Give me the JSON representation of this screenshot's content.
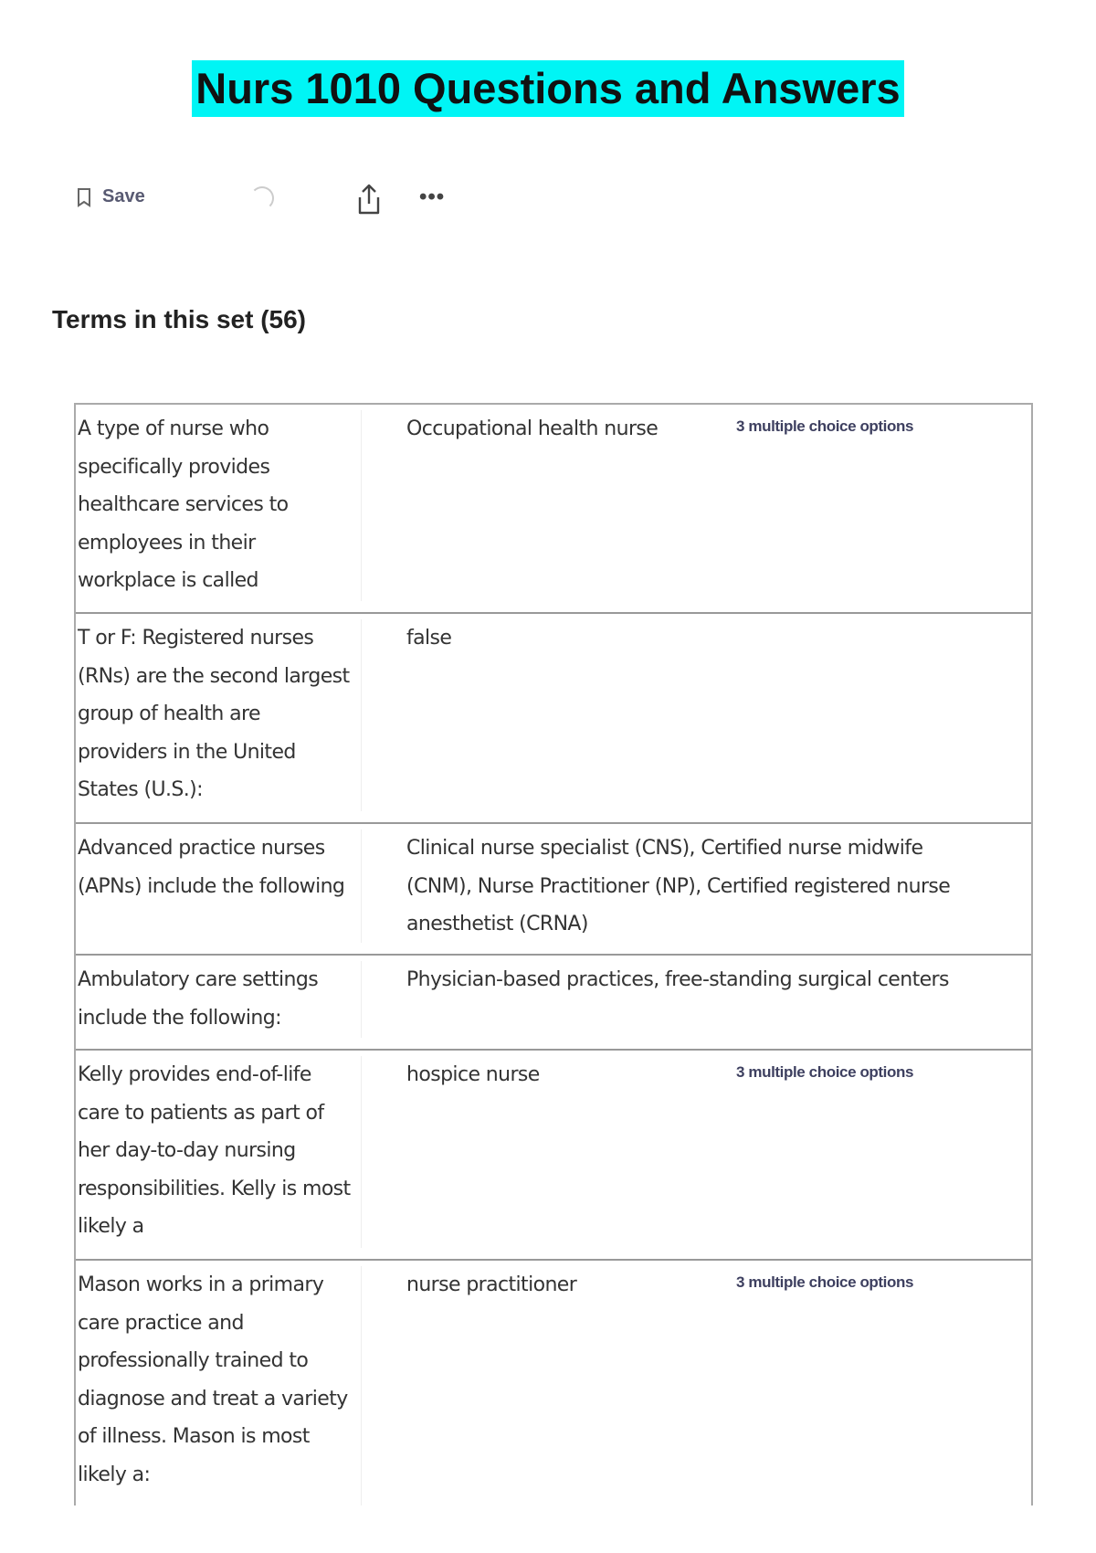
{
  "title": "Nurs 1010 Questions and Answers",
  "toolbar": {
    "save_label": "Save",
    "icons": [
      "bookmark-icon",
      "loading-spinner-icon",
      "share-icon",
      "more-icon"
    ],
    "more_label": "•••"
  },
  "terms_heading": "Terms in this set (56)",
  "colors": {
    "title_highlight": "#00f5f5"
  },
  "cards": [
    {
      "term": "A type of nurse who specifically provides healthcare services to employees in their workplace is called",
      "definition": "Occupational health nurse",
      "badge": "3 multiple choice options"
    },
    {
      "term": "T or F: Registered nurses (RNs) are the second largest group of health are providers in the United States (U.S.):",
      "definition": "false",
      "badge": ""
    },
    {
      "term": "Advanced practice nurses (APNs) include the following",
      "definition": "Clinical nurse specialist (CNS), Certified nurse midwife (CNM), Nurse Practitioner (NP), Certified registered nurse anesthetist (CRNA)",
      "badge": ""
    },
    {
      "term": "Ambulatory care settings include the following:",
      "definition": "Physician-based practices, free-standing surgical centers",
      "badge": ""
    },
    {
      "term": "Kelly provides end-of-life care to patients as part of her day-to-day nursing responsibilities. Kelly is most likely a",
      "definition": "hospice nurse",
      "badge": "3 multiple choice options"
    },
    {
      "term": "Mason works in a primary care practice and professionally trained to diagnose and treat a variety of illness. Mason is most likely a:",
      "definition": "nurse practitioner",
      "badge": "3 multiple choice options"
    }
  ]
}
